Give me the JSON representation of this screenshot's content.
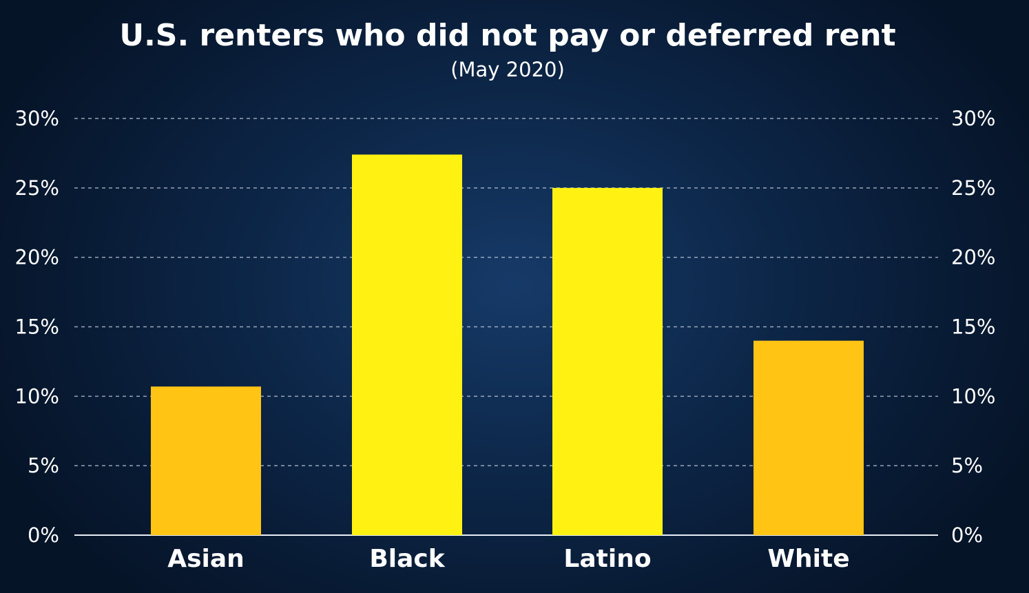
{
  "chart_data": {
    "type": "bar",
    "title": "U.S. renters who did not pay or deferred rent",
    "subtitle": "(May 2020)",
    "categories": [
      "Asian",
      "Black",
      "Latino",
      "White"
    ],
    "values": [
      10.7,
      27.4,
      25.0,
      14.0
    ],
    "value_unit": "%",
    "bar_colors": [
      "#ffc414",
      "#fff212",
      "#fff212",
      "#ffc414"
    ],
    "yticks": [
      "0%",
      "5%",
      "10%",
      "15%",
      "20%",
      "25%",
      "30%"
    ],
    "ylim": [
      0,
      30
    ],
    "ytick_step": 5,
    "grid": "dashed horizontal",
    "y_axis_labels": "both sides",
    "xlabel": "",
    "ylabel": ""
  },
  "colors": {
    "background": "#0d2749",
    "text": "#ffffff",
    "highlight_bar": "#fff212",
    "base_bar": "#ffc414"
  }
}
